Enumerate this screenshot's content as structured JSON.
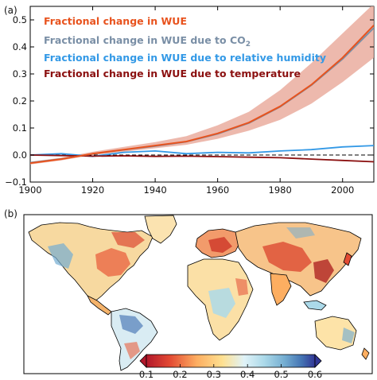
{
  "figure": {
    "panel_a_label": "(a)",
    "panel_b_label": "(b)"
  },
  "chart_data": [
    {
      "type": "line",
      "title": "",
      "xlabel": "",
      "ylabel": "",
      "xlim": [
        1900,
        2010
      ],
      "ylim": [
        -0.1,
        0.55
      ],
      "xticks": [
        "1900",
        "1920",
        "1940",
        "1960",
        "1980",
        "2000"
      ],
      "yticks": [
        "−0.1",
        "0.0",
        "0.1",
        "0.2",
        "0.3",
        "0.4",
        "0.5"
      ],
      "legend_position": "top-left",
      "legend": {
        "wue": "Fractional change in WUE",
        "co2_prefix": "Fractional change in WUE due to CO",
        "co2_sub": "2",
        "rh": "Fractional change in WUE due to relative humidity",
        "temp": "Fractional change in WUE due to temperature"
      },
      "series": [
        {
          "name": "Fractional change in WUE",
          "color": "#e8531e",
          "x": [
            1900,
            1910,
            1920,
            1930,
            1940,
            1950,
            1960,
            1970,
            1980,
            1990,
            2000,
            2010
          ],
          "y": [
            -0.03,
            -0.015,
            0.005,
            0.02,
            0.035,
            0.05,
            0.08,
            0.12,
            0.18,
            0.26,
            0.36,
            0.48
          ]
        },
        {
          "name": "Fractional change in WUE due to CO2",
          "color": "#7a8fa6",
          "x": [
            1900,
            1910,
            1920,
            1930,
            1940,
            1950,
            1960,
            1970,
            1980,
            1990,
            2000,
            2010
          ],
          "y": [
            -0.028,
            -0.014,
            0.004,
            0.019,
            0.033,
            0.049,
            0.078,
            0.118,
            0.178,
            0.258,
            0.355,
            0.47
          ]
        },
        {
          "name": "Fractional change in WUE due to relative humidity",
          "color": "#3399e6",
          "x": [
            1900,
            1910,
            1920,
            1930,
            1940,
            1950,
            1960,
            1970,
            1980,
            1990,
            2000,
            2010
          ],
          "y": [
            0.0,
            0.005,
            -0.005,
            0.01,
            0.015,
            0.005,
            0.01,
            0.008,
            0.015,
            0.02,
            0.03,
            0.035
          ]
        },
        {
          "name": "Fractional change in WUE due to temperature",
          "color": "#8b1010",
          "x": [
            1900,
            1910,
            1920,
            1930,
            1940,
            1950,
            1960,
            1970,
            1980,
            1990,
            2000,
            2010
          ],
          "y": [
            0.0,
            -0.002,
            -0.004,
            -0.003,
            -0.005,
            -0.004,
            -0.006,
            -0.008,
            -0.01,
            -0.015,
            -0.02,
            -0.025
          ]
        }
      ],
      "uncertainty_band": {
        "color": "#e8a898",
        "x": [
          1900,
          1910,
          1920,
          1930,
          1940,
          1950,
          1960,
          1970,
          1980,
          1990,
          2000,
          2010
        ],
        "lower": [
          -0.035,
          -0.02,
          0.0,
          0.012,
          0.025,
          0.038,
          0.06,
          0.09,
          0.13,
          0.19,
          0.27,
          0.36
        ],
        "upper": [
          -0.025,
          -0.01,
          0.012,
          0.03,
          0.048,
          0.07,
          0.11,
          0.16,
          0.24,
          0.34,
          0.45,
          0.56
        ]
      }
    },
    {
      "type": "heatmap",
      "title": "",
      "colormap": "red-yellow-blue (diverging)",
      "colorbar": {
        "ticks": [
          "0.1",
          "0.2",
          "0.3",
          "0.4",
          "0.5",
          "0.6"
        ],
        "range": [
          0.1,
          0.6
        ],
        "extends": "both",
        "colors": [
          "#b2182b",
          "#e34a33",
          "#fdae61",
          "#fee090",
          "#e0f3f8",
          "#abd9e9",
          "#74add1",
          "#4575b4",
          "#313695"
        ]
      }
    }
  ]
}
